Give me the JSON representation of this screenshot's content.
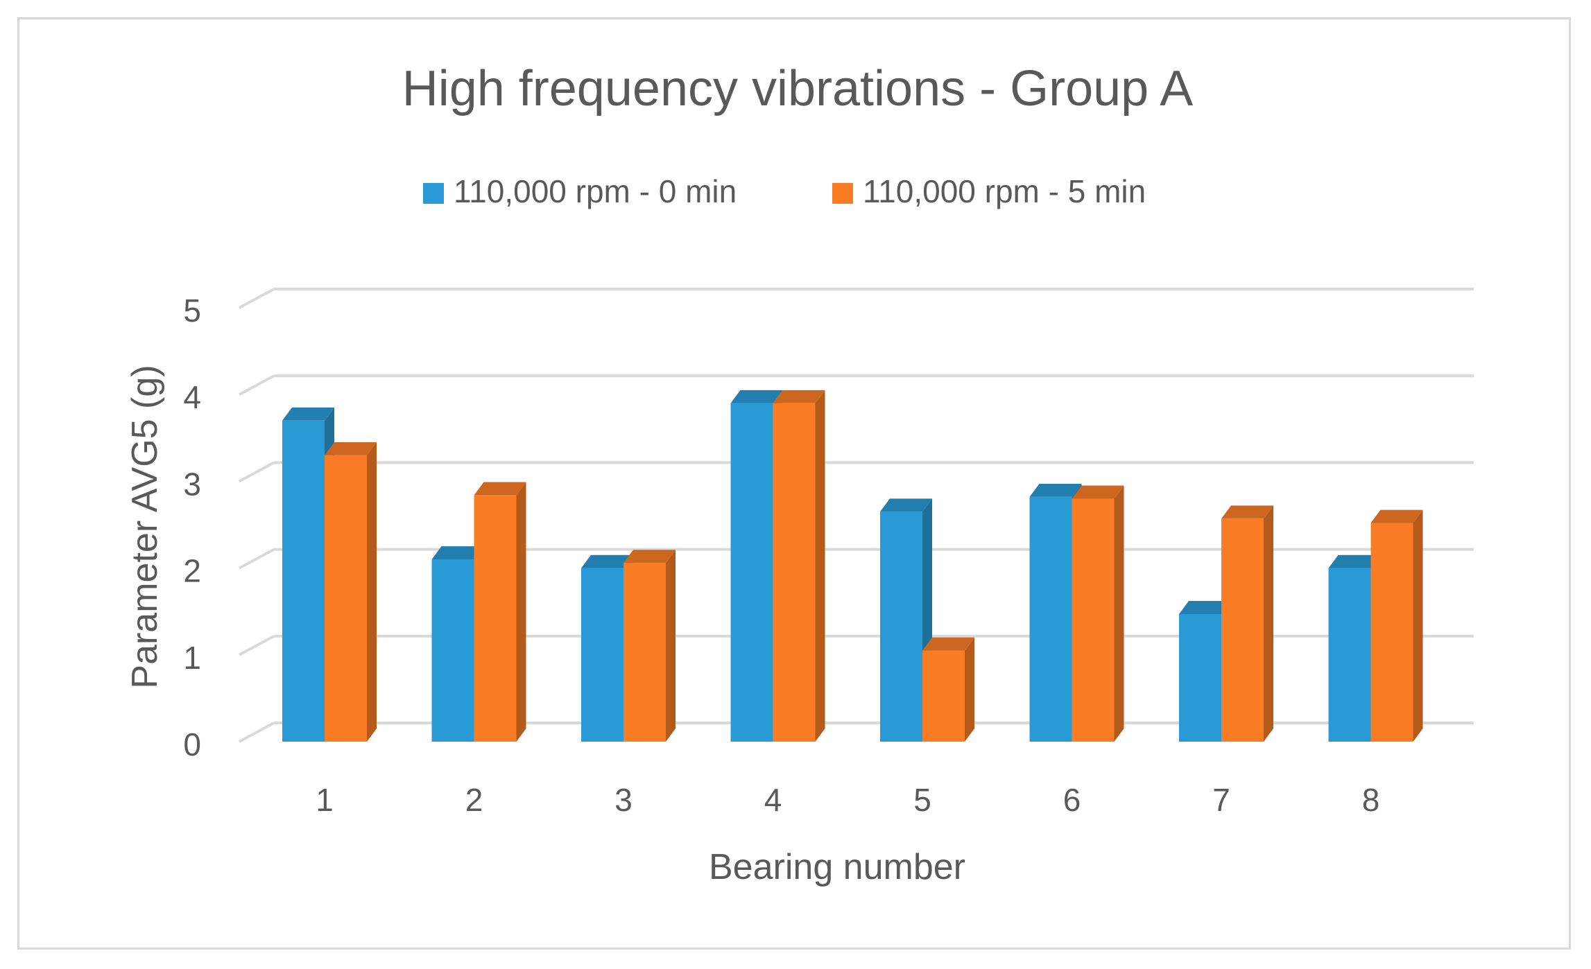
{
  "chart_data": {
    "type": "bar",
    "title": "High frequency vibrations - Group A",
    "xlabel": "Bearing number",
    "ylabel": "Parameter AVG5 (g)",
    "categories": [
      "1",
      "2",
      "3",
      "4",
      "5",
      "6",
      "7",
      "8"
    ],
    "yticks": [
      "0",
      "1",
      "2",
      "3",
      "4",
      "5"
    ],
    "ylim": [
      0,
      5
    ],
    "grid": true,
    "legend_position": "top-center",
    "series": [
      {
        "name": "110,000 rpm - 0 min",
        "color": "#2a9ad6",
        "values": [
          3.7,
          2.1,
          2.0,
          3.9,
          2.65,
          2.82,
          1.47,
          2.0
        ]
      },
      {
        "name": "110,000 rpm - 5 min",
        "color": "#fa7d26",
        "values": [
          3.3,
          2.84,
          2.06,
          3.9,
          1.05,
          2.8,
          2.57,
          2.52
        ]
      }
    ]
  }
}
